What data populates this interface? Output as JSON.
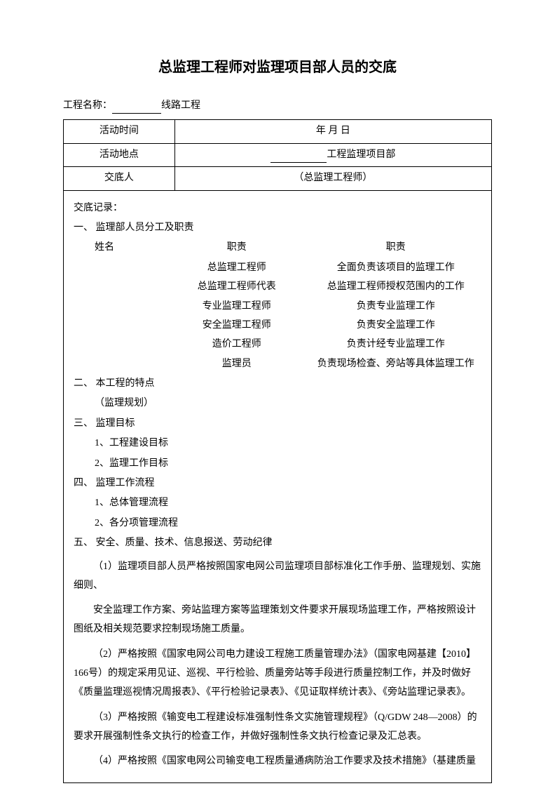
{
  "title": "总监理工程师对监理项目部人员的交底",
  "project_label": "工程名称：",
  "project_suffix": "线路工程",
  "header_rows": [
    {
      "label": "活动时间",
      "value": "年   月   日"
    },
    {
      "label": "活动地点",
      "value_suffix": "工程监理项目部"
    },
    {
      "label": "交底人",
      "value": "（总监理工程师）"
    }
  ],
  "record_title": "交底记录：",
  "section1_title": "一、 监理部人员分工及职责",
  "staff_headers": {
    "col1": "姓名",
    "col2": "职责",
    "col3": "职责"
  },
  "staff_rows": [
    {
      "role": "总监理工程师",
      "duty": "全面负责该项目的监理工作"
    },
    {
      "role": "总监理工程师代表",
      "duty": "总监理工程师授权范围内的工作"
    },
    {
      "role": "专业监理工程师",
      "duty": "负责专业监理工作"
    },
    {
      "role": "安全监理工程师",
      "duty": "负责安全监理工作"
    },
    {
      "role": "造价工程师",
      "duty": "负责计经专业监理工作"
    },
    {
      "role": "监理员",
      "duty": "负责现场检查、旁站等具体监理工作"
    }
  ],
  "section2_title": "二、 本工程的特点",
  "section2_sub": "（监理规划）",
  "section3_title": "三、 监理目标",
  "section3_items": [
    "1、工程建设目标",
    "2、监理工作目标"
  ],
  "section4_title": "四、 监理工作流程",
  "section4_items": [
    "1、总体管理流程",
    "2、各分项管理流程"
  ],
  "section5_title": "五、 安全、质量、技术、信息报送、劳动纪律",
  "para1": "（1）监理项目部人员严格按照国家电网公司监理项目部标准化工作手册、监理规划、实施细则、",
  "para1b": "安全监理工作方案、旁站监理方案等监理策划文件要求开展现场监理工作，严格按照设计图纸及相关规范要求控制现场施工质量。",
  "para2": "（2）严格按照《国家电网公司电力建设工程施工质量管理办法》（国家电网基建【2010】166号）的规定采用见证、巡视、平行检验、质量旁站等手段进行质量控制工作，并及时做好《质量监理巡视情况周报表》、《平行检验记录表》、《见证取样统计表》、《旁站监理记录表》。",
  "para3": "（3）严格按照《输变电工程建设标准强制性条文实施管理规程》（Q/GDW 248—2008）的要求开展强制性条文执行的检查工作，并做好强制性条文执行检查记录及汇总表。",
  "para4": "（4）严格按照《国家电网公司输变电工程质量通病防治工作要求及技术措施》（基建质量"
}
